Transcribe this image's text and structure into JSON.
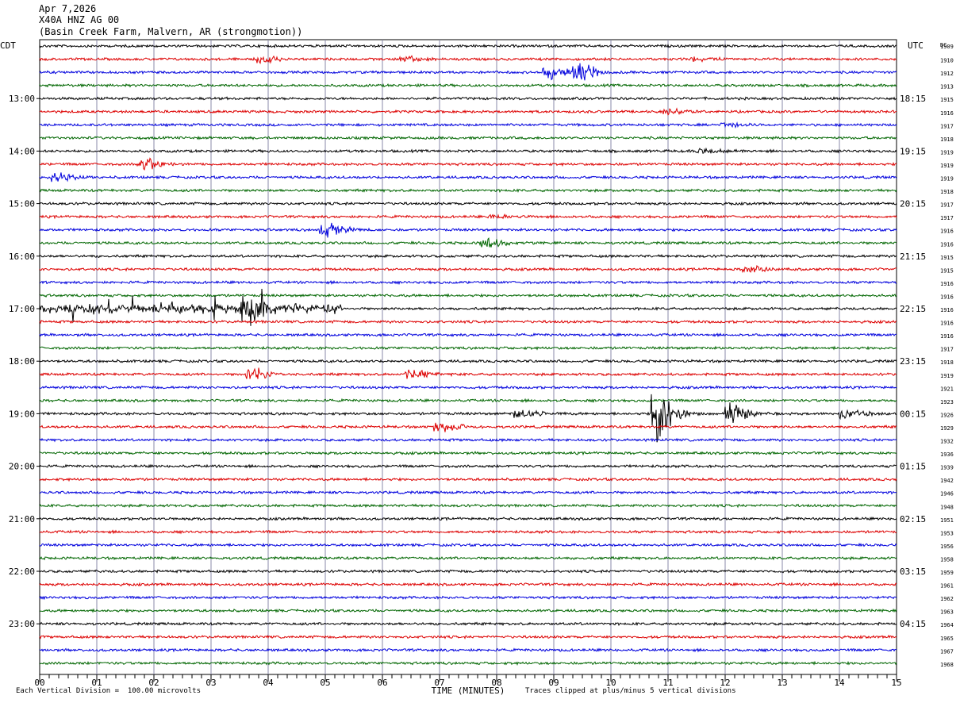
{
  "header": {
    "date": "Apr 7,2026",
    "station": "X40A HNZ AG 00",
    "site": "(Basin Creek Farm, Malvern, AR (strongmotion))"
  },
  "chart_data": {
    "type": "line",
    "title": "",
    "xlabel": "TIME (MINUTES)",
    "ylabel": "",
    "x_ticks": [
      "00",
      "01",
      "02",
      "03",
      "04",
      "05",
      "06",
      "07",
      "08",
      "09",
      "10",
      "11",
      "12",
      "13",
      "14",
      "15"
    ],
    "xlim": [
      0,
      15
    ],
    "left_axis_title": "CDT",
    "right_axis_title": "UTC",
    "dc_axis_title": "DC",
    "left_hour_labels": [
      "13:00",
      "14:00",
      "15:00",
      "16:00",
      "17:00",
      "18:00",
      "19:00",
      "20:00",
      "21:00",
      "22:00",
      "23:00"
    ],
    "right_hour_labels": [
      "18:15",
      "19:15",
      "20:15",
      "21:15",
      "22:15",
      "23:15",
      "00:15",
      "01:15",
      "02:15",
      "03:15",
      "04:15"
    ],
    "dc_offsets": [
      "1909",
      "1910",
      "1912",
      "1913",
      "1915",
      "1916",
      "1917",
      "1918",
      "1919",
      "1919",
      "1919",
      "1918",
      "1917",
      "1917",
      "1916",
      "1916",
      "1915",
      "1915",
      "1916",
      "1916",
      "1916",
      "1916",
      "1916",
      "1917",
      "1918",
      "1919",
      "1921",
      "1923",
      "1926",
      "1929",
      "1932",
      "1936",
      "1939",
      "1942",
      "1946",
      "1948",
      "1951",
      "1953",
      "1956",
      "1958",
      "1959",
      "1961",
      "1962",
      "1963",
      "1964",
      "1965",
      "1967",
      "1968"
    ],
    "trace_colors": [
      "#000000",
      "#dd0000",
      "#0000dd",
      "#006600"
    ],
    "trace_count": 48,
    "minutes_per_trace": 15,
    "events": [
      {
        "trace": 1,
        "minute": 3.9,
        "amp": 0.25
      },
      {
        "trace": 1,
        "minute": 6.4,
        "amp": 0.2
      },
      {
        "trace": 1,
        "minute": 11.5,
        "amp": 0.12
      },
      {
        "trace": 2,
        "minute": 8.9,
        "amp": 0.45
      },
      {
        "trace": 2,
        "minute": 9.4,
        "amp": 0.7
      },
      {
        "trace": 5,
        "minute": 11.0,
        "amp": 0.2
      },
      {
        "trace": 6,
        "minute": 12.0,
        "amp": 0.18
      },
      {
        "trace": 8,
        "minute": 11.6,
        "amp": 0.15
      },
      {
        "trace": 9,
        "minute": 1.8,
        "amp": 0.55
      },
      {
        "trace": 10,
        "minute": 0.3,
        "amp": 0.35
      },
      {
        "trace": 13,
        "minute": 7.9,
        "amp": 0.15
      },
      {
        "trace": 14,
        "minute": 5.0,
        "amp": 0.5
      },
      {
        "trace": 15,
        "minute": 7.8,
        "amp": 0.35
      },
      {
        "trace": 17,
        "minute": 12.4,
        "amp": 0.3
      },
      {
        "trace": 20,
        "minute": 3.6,
        "amp": 1.0
      },
      {
        "trace": 25,
        "minute": 3.7,
        "amp": 0.55
      },
      {
        "trace": 25,
        "minute": 6.5,
        "amp": 0.3
      },
      {
        "trace": 28,
        "minute": 8.4,
        "amp": 0.3
      },
      {
        "trace": 28,
        "minute": 10.8,
        "amp": 2.2
      },
      {
        "trace": 28,
        "minute": 12.1,
        "amp": 0.7
      },
      {
        "trace": 28,
        "minute": 14.1,
        "amp": 0.35
      },
      {
        "trace": 29,
        "minute": 7.0,
        "amp": 0.4
      }
    ]
  },
  "footer": {
    "scale_note": "Each Vertical Division =  100.00 microvolts",
    "clip_note": "Traces clipped at plus/minus 5 vertical divisions"
  }
}
